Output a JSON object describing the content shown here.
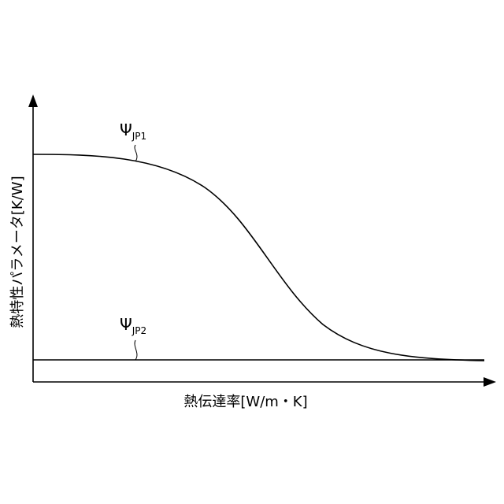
{
  "y_axis_label": "熱特性パラメータ[K/W]",
  "x_axis_label": "熱伝達率[W/m・K]",
  "curves": [
    {
      "symbol": "Ψ",
      "subscript": "JP1"
    },
    {
      "symbol": "Ψ",
      "subscript": "JP2"
    }
  ]
}
